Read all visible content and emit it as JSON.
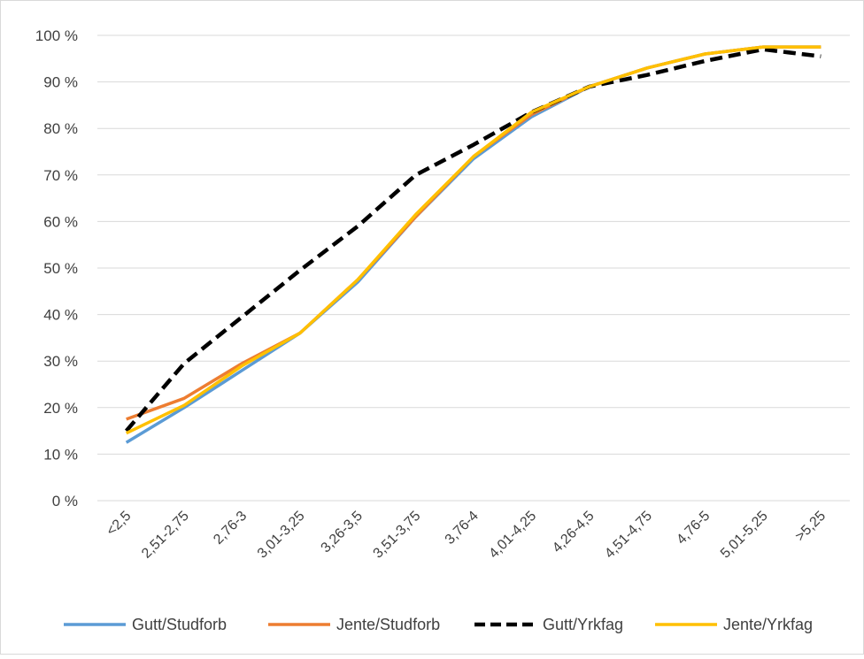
{
  "chart_data": {
    "type": "line",
    "categories": [
      "<2,5",
      "2,51-2,75",
      "2,76-3",
      "3,01-3,25",
      "3,26-3,5",
      "3,51-3,75",
      "3,76-4",
      "4,01-4,25",
      "4,26-4,5",
      "4,51-4,75",
      "4,76-5",
      "5,01-5,25",
      ">5,25"
    ],
    "y_ticks": [
      "0 %",
      "10 %",
      "20 %",
      "30 %",
      "40 %",
      "50 %",
      "60 %",
      "70 %",
      "80 %",
      "90 %",
      "100 %"
    ],
    "ylim": [
      0,
      100
    ],
    "y_unit": "%",
    "grid": true,
    "legend_position": "bottom",
    "title": "",
    "xlabel": "",
    "ylabel": "",
    "series": [
      {
        "name": "Gutt/Studforb",
        "color": "#5B9BD5",
        "dash": "solid",
        "values": [
          12.5,
          20,
          28,
          36,
          47,
          61,
          73.5,
          82.5,
          89,
          93,
          96,
          97.5,
          97.5
        ]
      },
      {
        "name": "Jente/Studforb",
        "color": "#ED7D31",
        "dash": "solid",
        "values": [
          17.5,
          22,
          29.5,
          36,
          47.5,
          61,
          74,
          83,
          89,
          93,
          96,
          97.5,
          97.5
        ]
      },
      {
        "name": "Gutt/Yrkfag",
        "color": "#000000",
        "dash": "dashed",
        "values": [
          15,
          29.5,
          39.5,
          49.5,
          59,
          70,
          76.5,
          83.5,
          89,
          91.5,
          94.5,
          97,
          95.5
        ]
      },
      {
        "name": "Jente/Yrkfag",
        "color": "#FFC000",
        "dash": "solid",
        "values": [
          14.5,
          20.5,
          29,
          36,
          47.5,
          61.5,
          74,
          83.5,
          89,
          93,
          96,
          97.5,
          97.5
        ]
      }
    ]
  }
}
